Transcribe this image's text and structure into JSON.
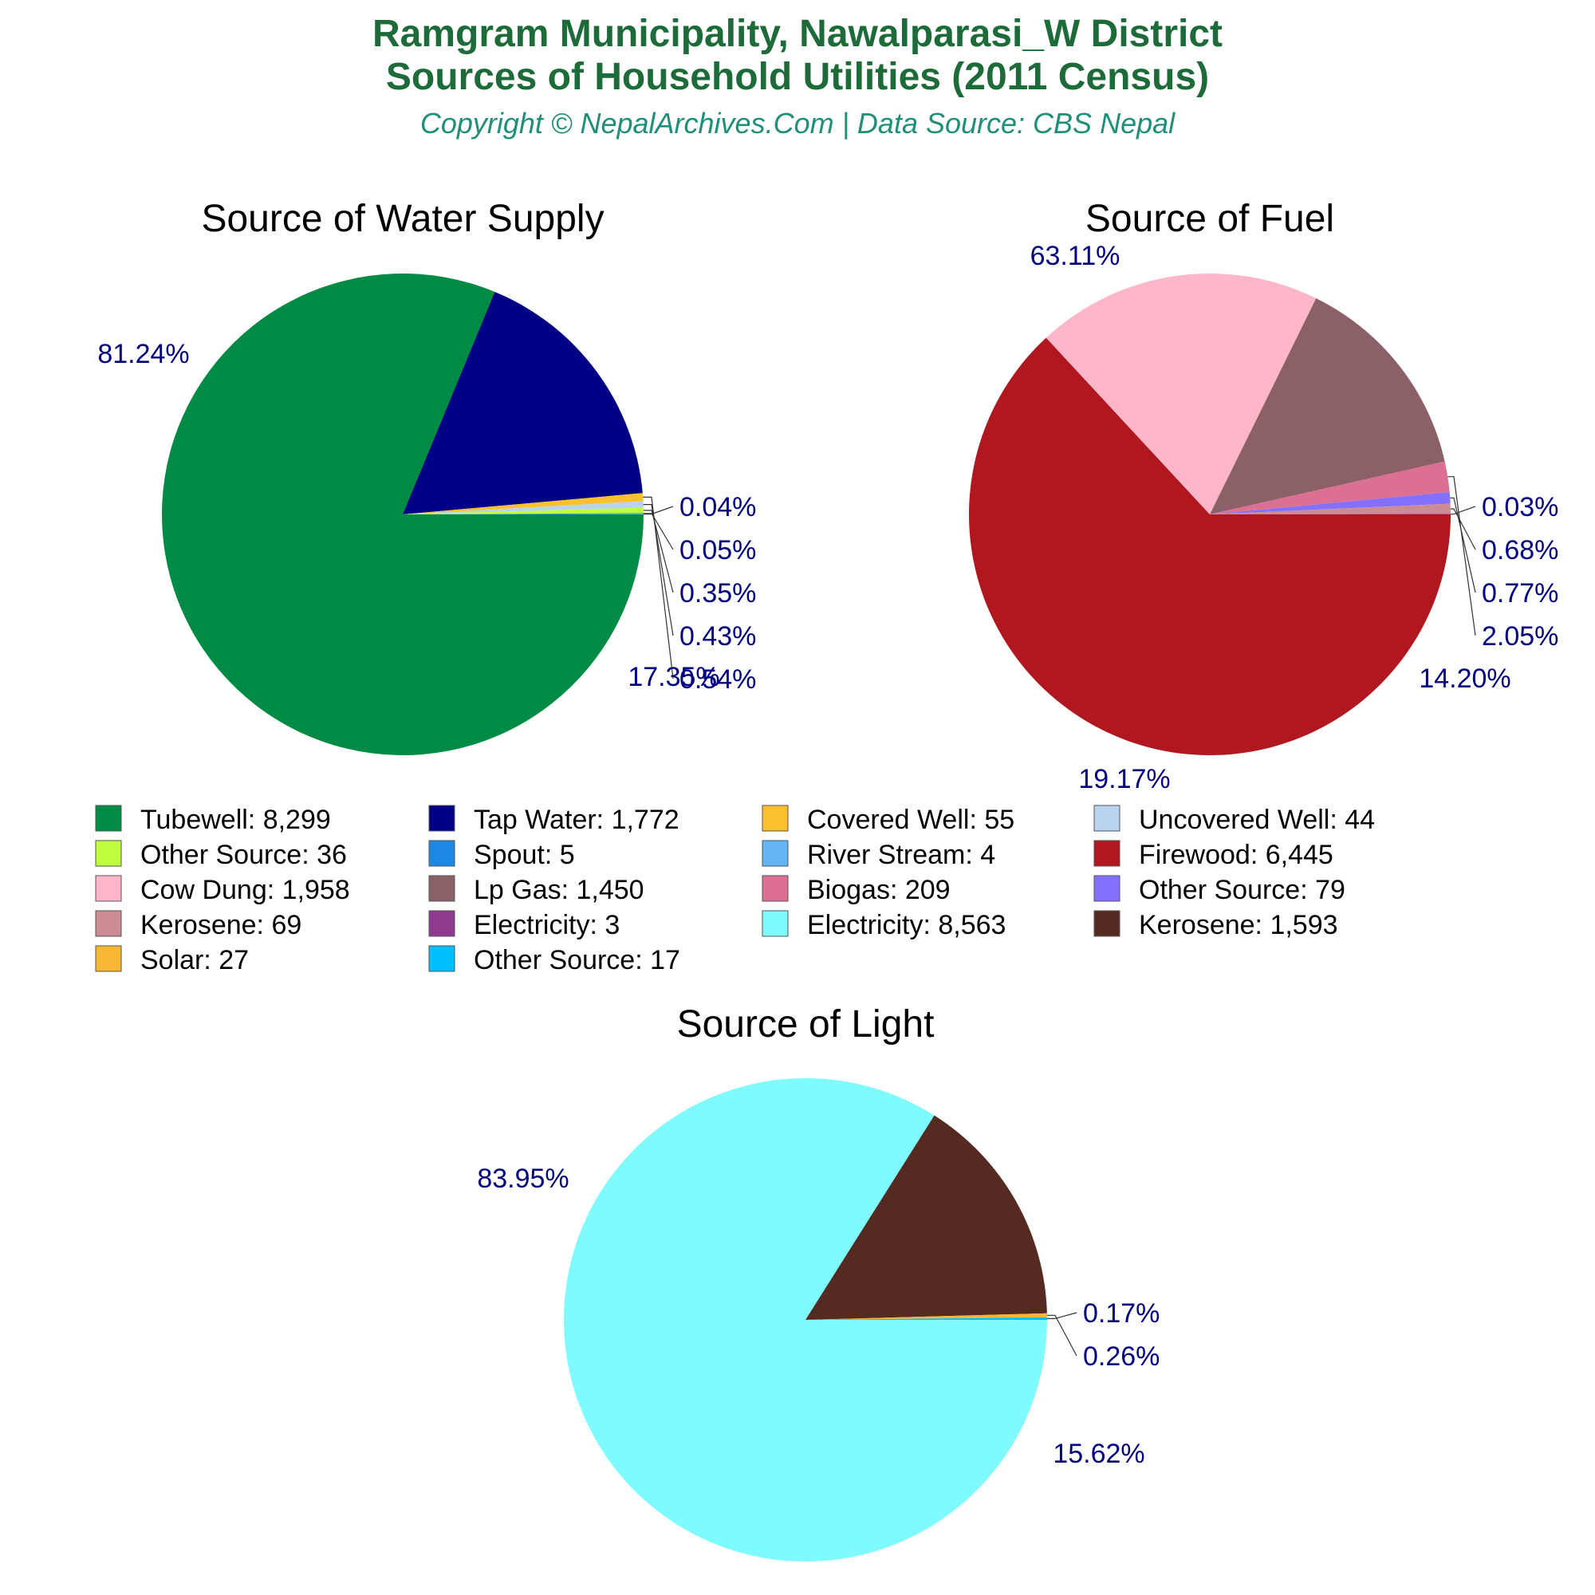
{
  "header": {
    "title_line1": "Ramgram Municipality, Nawalparasi_W District",
    "title_line2": "Sources of Household Utilities (2011 Census)",
    "copyright": "Copyright © NepalArchives.Com | Data Source: CBS Nepal"
  },
  "chart_data": [
    {
      "type": "pie",
      "title": "Source of Water Supply",
      "slices": [
        {
          "label": "Tubewell",
          "value": 8299,
          "percent": "81.24%",
          "color": "#008b45"
        },
        {
          "label": "Tap Water",
          "value": 1772,
          "percent": "17.35%",
          "color": "#000087"
        },
        {
          "label": "Covered Well",
          "value": 55,
          "percent": "0.54%",
          "color": "#fbc02d"
        },
        {
          "label": "Uncovered Well",
          "value": 44,
          "percent": "0.43%",
          "color": "#b9d3ee"
        },
        {
          "label": "Other Source",
          "value": 36,
          "percent": "0.35%",
          "color": "#c0ff3e"
        },
        {
          "label": "Spout",
          "value": 5,
          "percent": "0.05%",
          "color": "#1e88e5"
        },
        {
          "label": "River Stream",
          "value": 4,
          "percent": "0.04%",
          "color": "#64b5f6"
        }
      ]
    },
    {
      "type": "pie",
      "title": "Source of Fuel",
      "slices": [
        {
          "label": "Firewood",
          "value": 6445,
          "percent": "63.11%",
          "color": "#b0171f"
        },
        {
          "label": "Cow Dung",
          "value": 1958,
          "percent": "19.17%",
          "color": "#ffb6c8"
        },
        {
          "label": "Lp Gas",
          "value": 1450,
          "percent": "14.20%",
          "color": "#8b6066"
        },
        {
          "label": "Biogas",
          "value": 209,
          "percent": "2.05%",
          "color": "#db7093"
        },
        {
          "label": "Other Source",
          "value": 79,
          "percent": "0.77%",
          "color": "#8470ff"
        },
        {
          "label": "Kerosene",
          "value": 69,
          "percent": "0.68%",
          "color": "#cd8c95"
        },
        {
          "label": "Electricity",
          "value": 3,
          "percent": "0.03%",
          "color": "#8e3a8e"
        }
      ]
    },
    {
      "type": "pie",
      "title": "Source of Light",
      "slices": [
        {
          "label": "Electricity",
          "value": 8563,
          "percent": "83.95%",
          "color": "#7ffaff"
        },
        {
          "label": "Kerosene",
          "value": 1593,
          "percent": "15.62%",
          "color": "#552a20"
        },
        {
          "label": "Solar",
          "value": 27,
          "percent": "0.26%",
          "color": "#f7b733"
        },
        {
          "label": "Other Source",
          "value": 17,
          "percent": "0.17%",
          "color": "#00bfff"
        }
      ]
    }
  ],
  "legend": {
    "items": [
      {
        "text": "Tubewell: 8,299",
        "color": "#008b45"
      },
      {
        "text": "Tap Water: 1,772",
        "color": "#000087"
      },
      {
        "text": "Covered Well: 55",
        "color": "#fbc02d"
      },
      {
        "text": "Uncovered Well: 44",
        "color": "#b9d3ee"
      },
      {
        "text": "Other Source: 36",
        "color": "#c0ff3e"
      },
      {
        "text": "Spout: 5",
        "color": "#1e88e5"
      },
      {
        "text": "River Stream: 4",
        "color": "#64b5f6"
      },
      {
        "text": "Firewood: 6,445",
        "color": "#b0171f"
      },
      {
        "text": "Cow Dung: 1,958",
        "color": "#ffb6c8"
      },
      {
        "text": "Lp Gas: 1,450",
        "color": "#8b6066"
      },
      {
        "text": "Biogas: 209",
        "color": "#db7093"
      },
      {
        "text": "Other Source: 79",
        "color": "#8470ff"
      },
      {
        "text": "Kerosene: 69",
        "color": "#cd8c95"
      },
      {
        "text": "Electricity: 3",
        "color": "#8e3a8e"
      },
      {
        "text": "Electricity: 8,563",
        "color": "#7ffaff"
      },
      {
        "text": "Kerosene: 1,593",
        "color": "#552a20"
      },
      {
        "text": "Solar: 27",
        "color": "#f7b733"
      },
      {
        "text": "Other Source: 17",
        "color": "#00bfff"
      }
    ]
  }
}
